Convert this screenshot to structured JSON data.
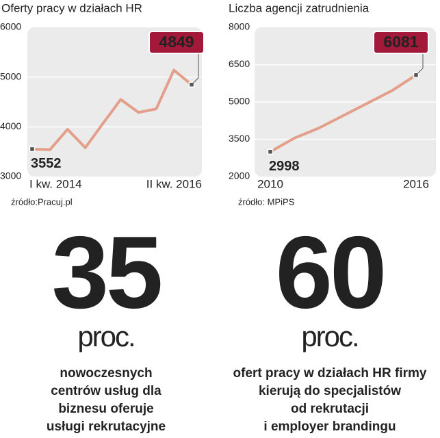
{
  "chart_data": [
    {
      "type": "line",
      "title": "Oferty pracy w działach HR",
      "categories": [
        "I kw. 2014",
        null,
        null,
        null,
        null,
        null,
        null,
        null,
        null,
        "II kw. 2016"
      ],
      "values": [
        3552,
        3540,
        3950,
        3580,
        4070,
        4550,
        4290,
        4360,
        5140,
        4849
      ],
      "color": "#e39f8a",
      "ylim": [
        3000,
        6000
      ],
      "yticks": [
        3000,
        4000,
        5000,
        6000
      ],
      "grid": true,
      "source": "źródło:Pracuj.pl"
    },
    {
      "type": "line",
      "title": "Liczba agencji zatrudnienia",
      "x": [
        2010,
        2011,
        2012,
        2013,
        2014,
        2015,
        2016
      ],
      "values": [
        2998,
        3550,
        3950,
        4450,
        4950,
        5450,
        6081
      ],
      "color": "#e39f8a",
      "xlim": [
        2010,
        2016
      ],
      "xticks": [
        2010,
        2016
      ],
      "ylim": [
        2000,
        8000
      ],
      "yticks": [
        2000,
        3500,
        5000,
        6500,
        8000
      ],
      "grid": true,
      "source": "źródło: MPiPS"
    }
  ],
  "stats": [
    {
      "number": "35",
      "unit": "proc.",
      "lines": [
        "nowoczesnych",
        "centrów usług dla",
        "biznesu oferuje",
        "usługi rekrutacyjne"
      ]
    },
    {
      "number": "60",
      "unit": "proc.",
      "lines": [
        "ofert pracy w działach HR firmy",
        "kierują do specjalistów",
        "od rekrutacji",
        "i employer brandingu"
      ]
    }
  ]
}
